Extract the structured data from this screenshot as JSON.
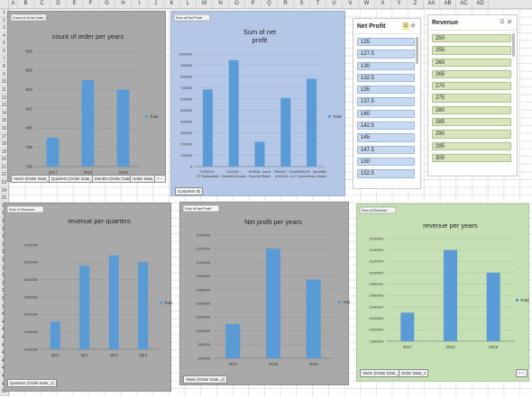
{
  "spreadsheet": {
    "columns": [
      "A",
      "B",
      "C",
      "D",
      "E",
      "F",
      "G",
      "H",
      "I",
      "J",
      "K",
      "L",
      "M",
      "N",
      "O",
      "P",
      "Q",
      "R",
      "S",
      "T",
      "U",
      "V",
      "W",
      "X",
      "Y",
      "Z",
      "AA",
      "AB",
      "AC",
      "AD"
    ],
    "rows": [
      "1",
      "2",
      "3",
      "4",
      "5",
      "6",
      "7",
      "8",
      "9",
      "10",
      "11",
      "12",
      "13",
      "14",
      "15",
      "16",
      "17",
      "18",
      "19",
      "20",
      "21",
      "22",
      "23",
      "24",
      "25",
      "26",
      "27",
      "28",
      "29",
      "30",
      "31",
      "32",
      "33",
      "34",
      "35",
      "36",
      "37",
      "38",
      "39",
      "40",
      "41",
      "42",
      "43",
      "44",
      "45",
      "46",
      "47",
      "48",
      "49",
      "50"
    ]
  },
  "colors": {
    "bar": "#5b9bd5",
    "gray_panel": "#a9a9a9",
    "blue_panel": "#b4c7e7",
    "green_panel": "#c5e0b4",
    "slicer_item": "#c5d9f1",
    "slicer_item_green": "#d8e4bc"
  },
  "charts": {
    "count_orders": {
      "field_tag": "Count of Order Date_1",
      "legend": "Total",
      "buttons": [
        "Years (Order Date_1)",
        "Quarters (Order Date_1)",
        "Months (Order Date_1)",
        "Order Date_1",
        "+ −"
      ],
      "chart_data": {
        "type": "bar",
        "title": "count of order per years",
        "categories": [
          "2017",
          "2018",
          "2019"
        ],
        "values": [
          799,
          805,
          804
        ],
        "yticks": [
          "796",
          "798",
          "800",
          "802",
          "804",
          "806",
          "808"
        ],
        "ylim": [
          796,
          808
        ]
      }
    },
    "sum_net_profit": {
      "field_tag": "Sum of Net Profit",
      "legend": "Total",
      "buttons": [
        "Customer ID"
      ],
      "chart_data": {
        "type": "bar",
        "title": "Sum of net\nprofit",
        "categories": [
          "CUS0019 - YT Restaurants",
          "CUS030 - Cascade Grocers",
          "HUSMA - Acme Grocery Stores",
          "TRIA513 - Fresh & Hot W...LLC",
          "NMD478 - QuickBite Convenience Stores"
        ],
        "values": [
          685000,
          945000,
          220000,
          610000,
          780000
        ],
        "yticks": [
          "0",
          "100000",
          "200000",
          "300000",
          "400000",
          "500000",
          "600000",
          "700000",
          "800000",
          "900000",
          "1000000"
        ],
        "ylim": [
          0,
          1000000
        ]
      }
    },
    "revenue_quarters": {
      "field_tag": "Sum of Revenue",
      "legend": "Total",
      "buttons": [
        "Quarters (Order Date_1)"
      ],
      "chart_data": {
        "type": "bar",
        "title": "revenue per quarters",
        "categories": [
          "Qtr1",
          "Qtr2",
          "Qtr3",
          "Qtr4"
        ],
        "values": [
          1480000,
          1640000,
          1670000,
          1650000
        ],
        "yticks": [
          "1400000",
          "1450000",
          "1500000",
          "1550000",
          "1600000",
          "1650000",
          "1700000"
        ],
        "ylim": [
          1400000,
          1700000
        ]
      }
    },
    "net_profit_years": {
      "field_tag": "Sum of Net Profit",
      "legend": "Total",
      "buttons": [
        "Years (Order Date_1)"
      ],
      "chart_data": {
        "type": "bar",
        "title": "Net profit per years",
        "categories": [
          "2017",
          "2018",
          "2019"
        ],
        "values": [
          1010000,
          1120000,
          1075000
        ],
        "yticks": [
          "960000",
          "980000",
          "1000000",
          "1020000",
          "1040000",
          "1060000",
          "1080000",
          "1100000",
          "1120000",
          "1140000"
        ],
        "ylim": [
          960000,
          1140000
        ]
      }
    },
    "revenue_years": {
      "field_tag": "Sum of Revenue",
      "legend": "Total",
      "buttons": [
        "Years (Order Date_1)",
        "Order Date_1",
        "+ −"
      ],
      "chart_data": {
        "type": "bar",
        "title": "revenue per years",
        "categories": [
          "2017",
          "2018",
          "2019"
        ],
        "values": [
          2030000,
          2140000,
          2100000
        ],
        "yticks": [
          "1980000",
          "2000000",
          "2020000",
          "2040000",
          "2060000",
          "2080000",
          "2100000",
          "2120000",
          "2140000",
          "2160000"
        ],
        "ylim": [
          1980000,
          2160000
        ]
      }
    }
  },
  "slicers": {
    "net_profit": {
      "title": "Net Profit",
      "items": [
        "125",
        "127.5",
        "130",
        "132.5",
        "135",
        "137.5",
        "140",
        "142.5",
        "145",
        "147.5",
        "150",
        "152.5"
      ]
    },
    "revenue": {
      "title": "Revenue",
      "items": [
        "250",
        "255",
        "260",
        "265",
        "270",
        "275",
        "280",
        "285",
        "290",
        "295",
        "300"
      ]
    }
  }
}
